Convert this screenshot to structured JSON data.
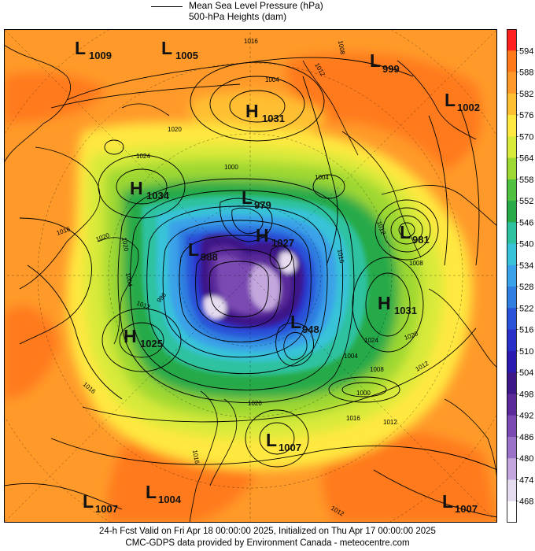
{
  "legend": {
    "line_label": "Mean Sea Level Pressure (hPa)",
    "fill_label": "500-hPa Heights (dam)"
  },
  "caption": {
    "line1": "24-h Fcst Valid on Fri Apr 18 00:00:00 2025, Initialized on Thu Apr 17 00:00:00 2025",
    "line2": "CMC-GDPS data provided by Environment Canada - meteocentre.com"
  },
  "colorbar": {
    "labels": [
      "594",
      "588",
      "582",
      "576",
      "570",
      "564",
      "558",
      "552",
      "546",
      "540",
      "534",
      "528",
      "522",
      "516",
      "510",
      "504",
      "498",
      "492",
      "486",
      "480",
      "474",
      "468"
    ],
    "colors": [
      "#ff2020",
      "#ff7a1a",
      "#ff9a2a",
      "#ffbf33",
      "#ffe840",
      "#d8ea3a",
      "#9ed832",
      "#50c040",
      "#28aa48",
      "#2fc2a0",
      "#39c3d8",
      "#3aa2e8",
      "#2f7ee0",
      "#2a52d8",
      "#2a2fc8",
      "#2a1ab0",
      "#3c1788",
      "#5a2a9a",
      "#7a4ab2",
      "#9a72c8",
      "#c2a6dc",
      "#e6dcf0",
      "#ffffff"
    ]
  },
  "systems": [
    {
      "type": "L",
      "value": "1009"
    },
    {
      "type": "L",
      "value": "1005"
    },
    {
      "type": "L",
      "value": "999"
    },
    {
      "type": "L",
      "value": "1002"
    },
    {
      "type": "H",
      "value": "1031"
    },
    {
      "type": "H",
      "value": "1034"
    },
    {
      "type": "L",
      "value": "979"
    },
    {
      "type": "H",
      "value": "1027"
    },
    {
      "type": "L",
      "value": "988"
    },
    {
      "type": "L",
      "value": "981"
    },
    {
      "type": "H",
      "value": "1031"
    },
    {
      "type": "H",
      "value": "1025"
    },
    {
      "type": "L",
      "value": "948"
    },
    {
      "type": "L",
      "value": "1007"
    },
    {
      "type": "L",
      "value": "1007"
    },
    {
      "type": "L",
      "value": "1004"
    },
    {
      "type": "L",
      "value": "1007"
    }
  ],
  "isobar_labels": [
    "1016",
    "1012",
    "1008",
    "1004",
    "1020",
    "1024",
    "1016",
    "1020",
    "1000",
    "1004",
    "1012",
    "1016",
    "1008",
    "1020",
    "1012",
    "996",
    "1004",
    "1024",
    "1020",
    "1012",
    "1008",
    "1004",
    "1000",
    "1020",
    "1016",
    "1012",
    "1016",
    "1016",
    "1012"
  ]
}
